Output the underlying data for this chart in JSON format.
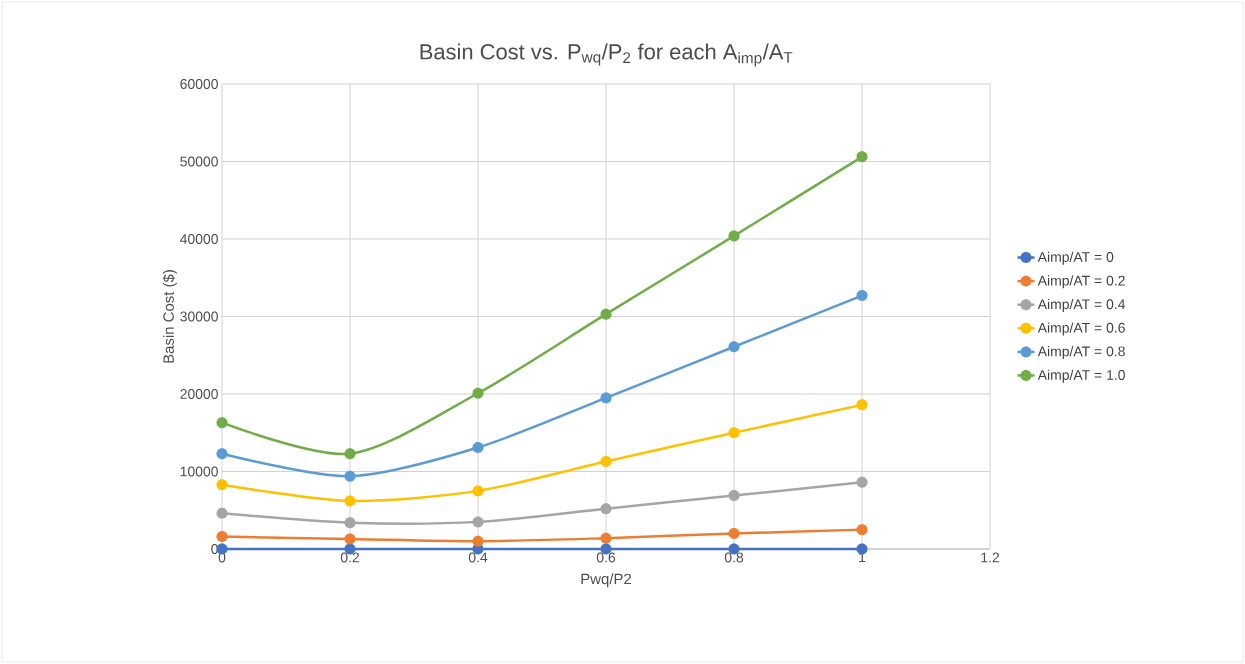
{
  "chart_data": {
    "type": "line",
    "title": "Basin Cost vs. P$_{wq}$/P$_{2}$ for each A$_{imp}$/A$_{T}$",
    "xlabel": "Pwq/P2",
    "ylabel": "Basin Cost ($)",
    "x": [
      0,
      0.2,
      0.4,
      0.6,
      0.8,
      1
    ],
    "series": [
      {
        "name": "Aimp/AT = 0",
        "color": "#4472c4",
        "values": [
          0,
          0,
          0,
          0,
          0,
          0
        ]
      },
      {
        "name": "Aimp/AT = 0.2",
        "color": "#ed7d31",
        "values": [
          1600,
          1300,
          1000,
          1400,
          2000,
          2500
        ]
      },
      {
        "name": "Aimp/AT = 0.4",
        "color": "#a5a5a5",
        "values": [
          4600,
          3400,
          3500,
          5200,
          6900,
          8600
        ]
      },
      {
        "name": "Aimp/AT = 0.6",
        "color": "#ffc000",
        "values": [
          8300,
          6200,
          7500,
          11300,
          15000,
          18600
        ]
      },
      {
        "name": "Aimp/AT = 0.8",
        "color": "#5b9bd5",
        "values": [
          12300,
          9400,
          13100,
          19500,
          26100,
          32700
        ]
      },
      {
        "name": "Aimp/AT = 1.0",
        "color": "#70ad47",
        "values": [
          16300,
          12300,
          20100,
          30300,
          40400,
          50600
        ]
      }
    ],
    "xlim": [
      0,
      1.2
    ],
    "xticks": [
      0,
      0.2,
      0.4,
      0.6,
      0.8,
      1,
      1.2
    ],
    "ylim": [
      0,
      60000
    ],
    "yticks": [
      0,
      10000,
      20000,
      30000,
      40000,
      50000,
      60000
    ],
    "grid": true,
    "legend": "right",
    "marker": "circle"
  }
}
